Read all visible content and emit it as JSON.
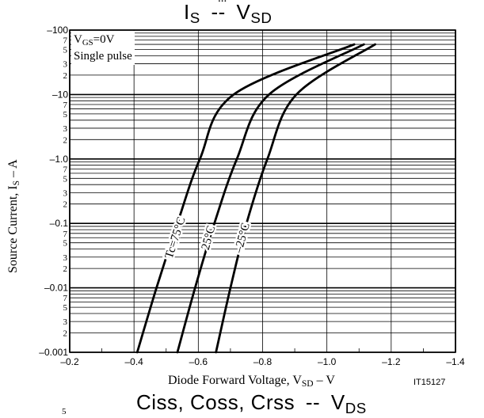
{
  "header": {
    "top_fragment": "..."
  },
  "chart_data": {
    "type": "line",
    "title_main": "I",
    "title_main_sub": "S",
    "title_sep": "--",
    "title_var": "V",
    "title_var_sub": "SD",
    "xlabel_main": "Diode Forward Voltage, V",
    "xlabel_sub": "SD",
    "xlabel_unit": "– V",
    "ylabel_main": "Source Current, I",
    "ylabel_sub": "S",
    "ylabel_unit": "– A",
    "code": "IT15127",
    "xlim": [
      -0.2,
      -1.4
    ],
    "ylim_log": [
      -0.001,
      -100
    ],
    "x_ticks": [
      "–0.2",
      "–0.4",
      "–0.6",
      "–0.8",
      "–1.0",
      "–1.2",
      "–1.4"
    ],
    "y_decade_labels": [
      "–100",
      "–10",
      "–1.0",
      "–0.1",
      "–0.01",
      "–0.001"
    ],
    "y_minor_labels": [
      "7",
      "5",
      "3",
      "2"
    ],
    "legend": {
      "line1_main": "V",
      "line1_sub": "GS",
      "line1_rest": "=0V",
      "line2": "Single pulse"
    },
    "series": [
      {
        "name": "Tc=75°C",
        "points": [
          [
            -0.41,
            -0.001
          ],
          [
            -0.47,
            -0.01
          ],
          [
            -0.535,
            -0.1
          ],
          [
            -0.605,
            -1.0
          ],
          [
            -0.71,
            -10
          ],
          [
            -1.085,
            -60
          ]
        ]
      },
      {
        "name": "25°C",
        "points": [
          [
            -0.535,
            -0.001
          ],
          [
            -0.59,
            -0.01
          ],
          [
            -0.65,
            -0.1
          ],
          [
            -0.72,
            -1.0
          ],
          [
            -0.82,
            -10
          ],
          [
            -1.115,
            -60
          ]
        ]
      },
      {
        "name": "–25°C",
        "points": [
          [
            -0.655,
            -0.001
          ],
          [
            -0.7,
            -0.01
          ],
          [
            -0.75,
            -0.1
          ],
          [
            -0.815,
            -1.0
          ],
          [
            -0.905,
            -10
          ],
          [
            -1.15,
            -60
          ]
        ]
      }
    ]
  },
  "footer": {
    "next_title_main": "Ciss, Coss, Crss",
    "next_title_sep": "--",
    "next_title_var": "V",
    "next_title_var_sub": "DS",
    "next_axis_fragment": "5"
  }
}
